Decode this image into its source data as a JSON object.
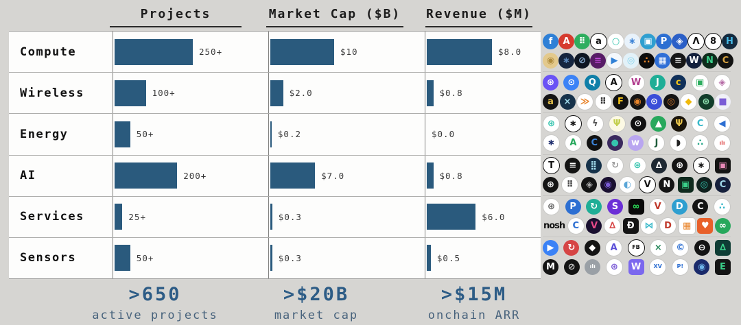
{
  "headers": [
    {
      "label": "Projects"
    },
    {
      "label": "Market Cap ($B)"
    },
    {
      "label": "Revenue ($M)"
    }
  ],
  "rows": [
    {
      "label": "Compute",
      "projects": "250+",
      "market_cap": "$10",
      "revenue": "$8.0"
    },
    {
      "label": "Wireless",
      "projects": "100+",
      "market_cap": "$2.0",
      "revenue": "$0.8"
    },
    {
      "label": "Energy",
      "projects": "50+",
      "market_cap": "$0.2",
      "revenue": "$0.0"
    },
    {
      "label": "AI",
      "projects": "200+",
      "market_cap": "$7.0",
      "revenue": "$0.8"
    },
    {
      "label": "Services",
      "projects": "25+",
      "market_cap": "$0.3",
      "revenue": "$6.0"
    },
    {
      "label": "Sensors",
      "projects": "50+",
      "market_cap": "$0.3",
      "revenue": "$0.5"
    }
  ],
  "footer": [
    {
      "value": ">650",
      "caption": "active projects"
    },
    {
      "value": ">$20B",
      "caption": "market cap"
    },
    {
      "value": ">$15M",
      "caption": "onchain ARR"
    }
  ],
  "chart_data": {
    "type": "bar",
    "orientation": "horizontal",
    "categories": [
      "Compute",
      "Wireless",
      "Energy",
      "AI",
      "Services",
      "Sensors"
    ],
    "series": [
      {
        "name": "Projects",
        "values": [
          250,
          100,
          50,
          200,
          25,
          50
        ],
        "labels": [
          "250+",
          "100+",
          "50+",
          "200+",
          "25+",
          "50+"
        ],
        "max": 250
      },
      {
        "name": "Market Cap ($B)",
        "values": [
          10,
          2.0,
          0.2,
          7.0,
          0.3,
          0.3
        ],
        "labels": [
          "$10",
          "$2.0",
          "$0.2",
          "$7.0",
          "$0.3",
          "$0.3"
        ],
        "max": 10
      },
      {
        "name": "Revenue ($M)",
        "values": [
          8.0,
          0.8,
          0.0,
          0.8,
          6.0,
          0.5
        ],
        "labels": [
          "$8.0",
          "$0.8",
          "$0.0",
          "$0.8",
          "$6.0",
          "$0.5"
        ],
        "max": 8
      }
    ],
    "bar_color": "#2a5a7d",
    "grid": false,
    "legend": false,
    "summary": {
      "active_projects": ">650",
      "market_cap": ">$20B",
      "onchain_arr": ">$15M"
    }
  },
  "colors": {
    "background": "#d6d5d2",
    "bar": "#2a5a7d",
    "accent": "#2d5c86",
    "caption": "#47627c"
  },
  "logo_rows": [
    [
      [
        [
          "#2f80d6",
          "#fff",
          "f",
          "c"
        ],
        [
          "#d63b2f",
          "#fff",
          "A",
          "c"
        ],
        [
          "#2eae5f",
          "#fff",
          "⠿",
          "c"
        ],
        [
          "#fff",
          "#111",
          "a",
          "cb"
        ],
        [
          "#fff",
          "#35c4ae",
          "○",
          "cb"
        ],
        [
          "#e8f2fb",
          "#3b82d6",
          "∗",
          "c"
        ],
        [
          "#2f9fd0",
          "#fff",
          "▣",
          "c"
        ],
        [
          "#2d6fd2",
          "#fff",
          "P",
          "c"
        ],
        [
          "#2b5fc7",
          "#fff",
          "◈",
          "c"
        ],
        [
          "#fff",
          "#111",
          "Λ",
          "cb"
        ],
        [
          "#fff",
          "#111",
          "8",
          "cb"
        ],
        [
          "#132a3f",
          "#45b9e6",
          "H",
          "c"
        ]
      ],
      [
        [
          "#e3c98c",
          "#b08d3e",
          "◉",
          "c"
        ],
        [
          "#15253f",
          "#5b87b8",
          "∗",
          "c"
        ],
        [
          "#0e1622",
          "#8fb4d9",
          "⊘",
          "c"
        ],
        [
          "#571b66",
          "#c14bd8",
          "≡",
          "c"
        ],
        [
          "#f4f8fc",
          "#2f80d6",
          "▶",
          "cb"
        ],
        [
          "#e2f1f8",
          "#86d3ec",
          "◎",
          "c"
        ],
        [
          "#0d0d0d",
          "#e8842a",
          "∴",
          "c"
        ],
        [
          "#2f6fd6",
          "#fff",
          "▦",
          "c"
        ],
        [
          "#161616",
          "#f2f2f2",
          "≡",
          "c"
        ],
        [
          "#13203c",
          "#fff",
          "W",
          "c"
        ],
        [
          "#0e2c1c",
          "#3ad08a",
          "N",
          "c"
        ],
        [
          "#121212",
          "#d9a441",
          "C",
          "c"
        ]
      ]
    ],
    [
      [
        [
          "#6a52f5",
          "#fff",
          "⊛",
          "c"
        ],
        [
          "#3b82f6",
          "#fff",
          "⊙",
          "c"
        ],
        [
          "#0f7fa8",
          "#fff",
          "Q",
          "c"
        ],
        [
          "#fff",
          "#111",
          "A",
          "cb"
        ],
        [
          "#fff",
          "#b03a8c",
          "W",
          "cb"
        ],
        [
          "#1fae96",
          "#fff",
          "J",
          "c"
        ],
        [
          "#10305a",
          "#f5c518",
          "c",
          "c"
        ],
        [
          "#fff",
          "#2eae5f",
          "▣",
          "cb"
        ],
        [
          "#fff",
          "#b56aa5",
          "◈",
          "cb"
        ]
      ],
      [
        [
          "#141414",
          "#e8c34a",
          "a",
          "c"
        ],
        [
          "#16324a",
          "#9fd8e8",
          "×",
          "c"
        ],
        [
          "#fff",
          "#e8842a",
          "≫",
          "cb"
        ],
        [
          "#fff",
          "#333",
          "⠿",
          "cb"
        ],
        [
          "#111",
          "#f5c518",
          "F",
          "c"
        ],
        [
          "#141414",
          "#e8842a",
          "◉",
          "c"
        ],
        [
          "#3b4fd8",
          "#fff",
          "⊙",
          "c"
        ],
        [
          "#141414",
          "#d87a2a",
          "◎",
          "c"
        ],
        [
          "#fff",
          "#f0b90b",
          "◆",
          "cb"
        ],
        [
          "#123d2a",
          "#8fe0b0",
          "⊛",
          "c"
        ],
        [
          "#f0f0f7",
          "#7b5cd6",
          "■",
          "c"
        ]
      ]
    ],
    [
      [
        [
          "#fff",
          "#35c4ae",
          "⊛",
          "cb"
        ],
        [
          "#fff",
          "#111",
          "∗",
          "cb"
        ],
        [
          "#fff",
          "#555",
          "ϟ",
          "cb"
        ],
        [
          "#fcf9e4",
          "#c3cf4e",
          "Ψ",
          "cb"
        ],
        [
          "#111",
          "#fff",
          "⊙",
          "c"
        ],
        [
          "#27a85c",
          "#fff",
          "▲",
          "c"
        ],
        [
          "#1a140a",
          "#e8c34a",
          "Ψ",
          "c"
        ],
        [
          "#fff",
          "#35b8c9",
          "C",
          "cb"
        ],
        [
          "#fff",
          "#2d6fd2",
          "◀",
          "cb"
        ]
      ],
      [
        [
          "#fff",
          "#1b2a6b",
          "∗",
          "cb"
        ],
        [
          "#fff",
          "#27a85c",
          "A",
          "cb"
        ],
        [
          "#111",
          "#3b82d6",
          "C",
          "c"
        ],
        [
          "#3b2a5e",
          "#35c4ae",
          "●",
          "c"
        ],
        [
          "#b9a6f0",
          "#fff",
          "w",
          "c"
        ],
        [
          "#fff",
          "#1e5c3a",
          "J",
          "cb"
        ],
        [
          "#fff",
          "#222",
          "◗",
          "cb"
        ],
        [
          "#fff",
          "#2aa88a",
          "∴",
          "cb"
        ],
        [
          "#fff",
          "#e05252",
          "ılı",
          "cb"
        ]
      ]
    ],
    [
      [
        [
          "#fff",
          "#111",
          "T",
          "cb"
        ],
        [
          "#141414",
          "#fff",
          "≡",
          "c"
        ],
        [
          "#16324a",
          "#9fd8e8",
          "⣿",
          "c"
        ],
        [
          "#fff",
          "#999",
          "↻",
          "cb"
        ],
        [
          "#fff",
          "#35c4ae",
          "⊛",
          "cb"
        ],
        [
          "#1f2933",
          "#fff",
          "∆",
          "c"
        ],
        [
          "#141414",
          "#fff",
          "⊕",
          "c"
        ],
        [
          "#fff",
          "#111",
          "∗",
          "cb"
        ],
        [
          "#141414",
          "#e88ab8",
          "▣",
          "s"
        ]
      ],
      [
        [
          "#141414",
          "#fff",
          "⊛",
          "c"
        ],
        [
          "#fff",
          "#444",
          "⠿",
          "cb"
        ],
        [
          "#141414",
          "#aaa",
          "◈",
          "c"
        ],
        [
          "#1a1030",
          "#7b5cd6",
          "◉",
          "c"
        ],
        [
          "#fff",
          "#5aa6d8",
          "◐",
          "cb"
        ],
        [
          "#fff",
          "#111",
          "V",
          "cb"
        ],
        [
          "#141414",
          "#fff",
          "N",
          "c"
        ],
        [
          "#0f2a1e",
          "#3ad08a",
          "▣",
          "s"
        ],
        [
          "#10201e",
          "#35c4ae",
          "◎",
          "c"
        ],
        [
          "#16203c",
          "#9fd8e8",
          "C",
          "c"
        ]
      ]
    ],
    [
      [
        [
          "#fff",
          "#666",
          "⊛",
          "cb"
        ],
        [
          "#2d6fd2",
          "#fff",
          "P",
          "c"
        ],
        [
          "#1fae96",
          "#fff",
          "↻",
          "c"
        ],
        [
          "#6b2fd6",
          "#fff",
          "S",
          "c"
        ],
        [
          "#0a0a0a",
          "#2ee65c",
          "∞",
          "s"
        ],
        [
          "#fff",
          "#c0392b",
          "V",
          "cb"
        ],
        [
          "#2f9fd0",
          "#fff",
          "D",
          "c"
        ],
        [
          "#141414",
          "#fff",
          "C",
          "c"
        ],
        [
          "#fff",
          "#35b8c9",
          "∴",
          "cb"
        ]
      ],
      [
        [
          "",
          "#111",
          "nosh",
          "t"
        ],
        [
          "#fff",
          "#2d6fd2",
          "C",
          "cb"
        ],
        [
          "#1a1030",
          "#e84a8a",
          "V",
          "c"
        ],
        [
          "#fff",
          "#d84a4a",
          "∆",
          "cb"
        ],
        [
          "#141414",
          "#fff",
          "Đ",
          "s"
        ],
        [
          "#fff",
          "#35b8c9",
          "⋈",
          "cb"
        ],
        [
          "#fff",
          "#c0392b",
          "D",
          "cb"
        ],
        [
          "#fff",
          "#e8842a",
          "▦",
          "sb"
        ],
        [
          "#e8602a",
          "#fff",
          "♥",
          "s"
        ],
        [
          "#27a85c",
          "#fff",
          "∞",
          "c"
        ]
      ]
    ],
    [
      [
        [
          "#3b82f6",
          "#fff",
          "▶",
          "c"
        ],
        [
          "#d64545",
          "#fff",
          "↻",
          "c"
        ],
        [
          "#141414",
          "#fff",
          "◆",
          "c"
        ],
        [
          "#fff",
          "#5b4fd8",
          "A",
          "cb"
        ],
        [
          "#fff",
          "#111",
          "FB",
          "cb"
        ],
        [
          "#fff",
          "#2d8a5f",
          "×",
          "cb"
        ],
        [
          "#fff",
          "#2d6fd2",
          "©",
          "cb"
        ],
        [
          "#141414",
          "#fff",
          "⊖",
          "c"
        ],
        [
          "#0f3d35",
          "#3ad08a",
          "∆",
          "s"
        ]
      ],
      [
        [
          "#141414",
          "#fff",
          "M",
          "c"
        ],
        [
          "#141414",
          "#ccc",
          "⊘",
          "c"
        ],
        [
          "#9aa0a6",
          "#fff",
          "ılı",
          "c"
        ],
        [
          "#fff",
          "#7b5cd6",
          "⊛",
          "cb"
        ],
        [
          "#7b68ee",
          "#fff",
          "W",
          "s"
        ],
        [
          "#fff",
          "#2d6fd2",
          "XV",
          "cb"
        ],
        [
          "#fff",
          "#2d6fd2",
          "P!",
          "cb"
        ],
        [
          "#1a2a6b",
          "#6db3e8",
          "◉",
          "c"
        ],
        [
          "#141414",
          "#3ad08a",
          "E",
          "s"
        ]
      ]
    ]
  ]
}
